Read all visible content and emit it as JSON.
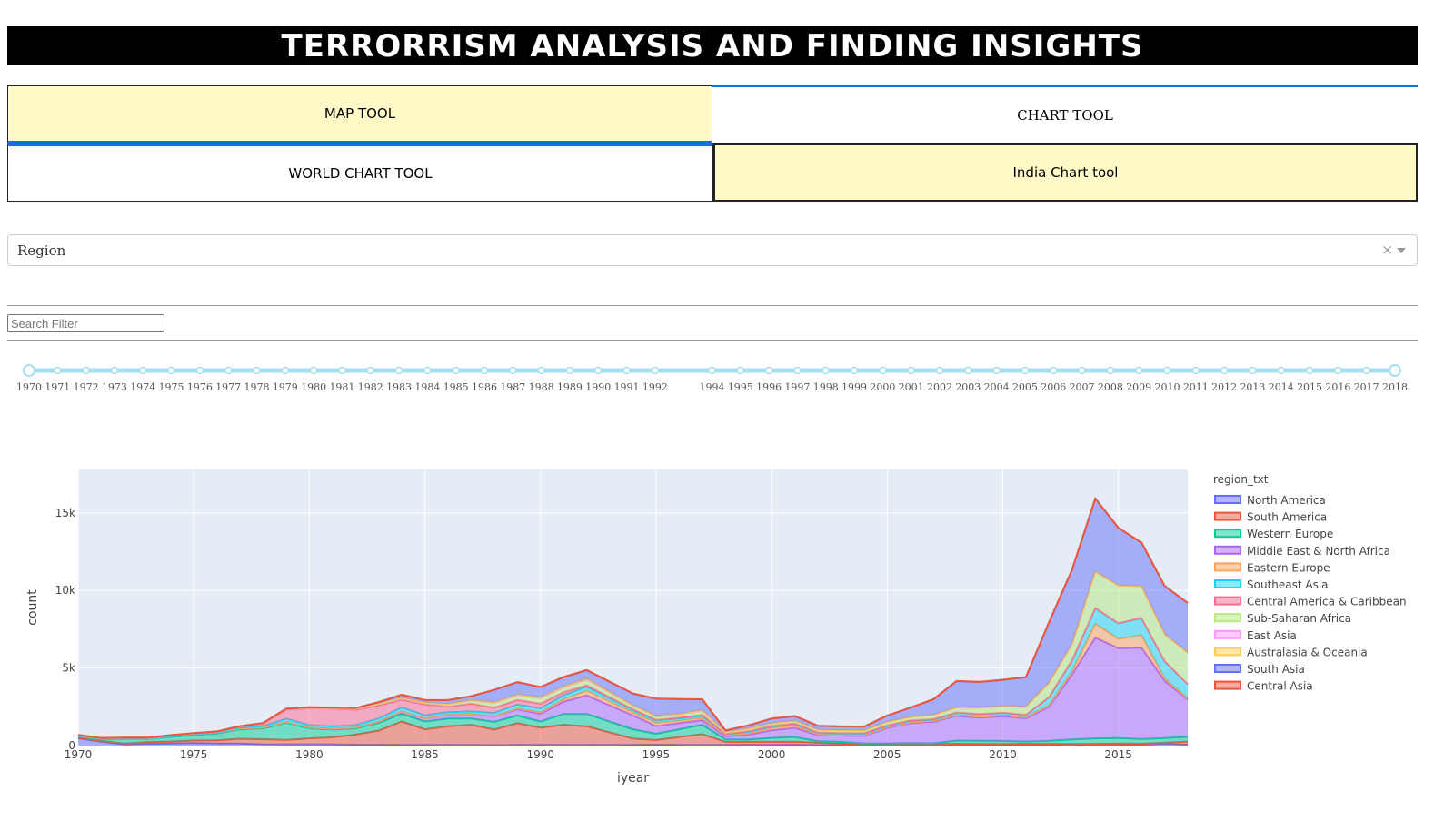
{
  "header": {
    "title": "TERRORRISM ANALYSIS AND FINDING INSIGHTS"
  },
  "tabs": {
    "map_tool": "MAP TOOL",
    "chart_tool": "CHART TOOL",
    "world_chart_tool": "WORLD CHART TOOL",
    "india_chart_tool": "India Chart tool"
  },
  "dropdown": {
    "selected": "Region",
    "clear_icon": "clear-x-icon",
    "arrow_icon": "chevron-down-icon"
  },
  "search": {
    "placeholder": "Search Filter"
  },
  "slider": {
    "min": 1970,
    "max": 2018,
    "marks": [
      1970,
      1971,
      1972,
      1973,
      1974,
      1975,
      1976,
      1977,
      1978,
      1979,
      1980,
      1981,
      1982,
      1983,
      1984,
      1985,
      1986,
      1987,
      1988,
      1989,
      1990,
      1991,
      1992,
      1994,
      1995,
      1996,
      1997,
      1998,
      1999,
      2000,
      2001,
      2002,
      2003,
      2004,
      2005,
      2006,
      2007,
      2008,
      2009,
      2010,
      2011,
      2012,
      2013,
      2014,
      2015,
      2016,
      2017,
      2018
    ],
    "selected_range": [
      1970,
      2018
    ]
  },
  "chart_data": {
    "type": "area",
    "xlabel": "iyear",
    "ylabel": "count",
    "legend_title": "region_txt",
    "legend_position": "right",
    "grid": true,
    "xlim": [
      1970,
      2018
    ],
    "ylim": [
      0,
      17800
    ],
    "x_ticks": [
      1970,
      1975,
      1980,
      1985,
      1990,
      1995,
      2000,
      2005,
      2010,
      2015
    ],
    "y_ticks": [
      0,
      5000,
      10000,
      15000
    ],
    "y_tick_labels": [
      "0",
      "5k",
      "10k",
      "15k"
    ],
    "x": [
      1970,
      1971,
      1972,
      1973,
      1974,
      1975,
      1976,
      1977,
      1978,
      1979,
      1980,
      1981,
      1982,
      1983,
      1984,
      1985,
      1986,
      1987,
      1988,
      1989,
      1990,
      1991,
      1992,
      1994,
      1995,
      1996,
      1997,
      1998,
      1999,
      2000,
      2001,
      2002,
      2003,
      2004,
      2005,
      2006,
      2007,
      2008,
      2009,
      2010,
      2011,
      2012,
      2013,
      2014,
      2015,
      2016,
      2017,
      2018
    ],
    "series": [
      {
        "name": "North America",
        "color": "#636efa",
        "values": [
          470,
          250,
          70,
          120,
          130,
          160,
          130,
          130,
          80,
          70,
          80,
          70,
          60,
          60,
          50,
          50,
          40,
          40,
          30,
          40,
          50,
          40,
          40,
          50,
          60,
          50,
          40,
          40,
          50,
          40,
          50,
          30,
          40,
          30,
          30,
          30,
          30,
          40,
          40,
          40,
          50,
          40,
          30,
          50,
          50,
          60,
          110,
          60
        ]
      },
      {
        "name": "South America",
        "color": "#EF553B",
        "values": [
          30,
          50,
          60,
          110,
          130,
          170,
          210,
          310,
          330,
          300,
          380,
          460,
          650,
          900,
          1500,
          1000,
          1200,
          1300,
          1000,
          1400,
          1100,
          1300,
          1200,
          400,
          300,
          500,
          700,
          200,
          200,
          200,
          200,
          150,
          100,
          50,
          60,
          70,
          60,
          80,
          70,
          60,
          60,
          70,
          70,
          60,
          80,
          60,
          70,
          200
        ]
      },
      {
        "name": "Western Europe",
        "color": "#00cc96",
        "values": [
          100,
          100,
          300,
          200,
          300,
          350,
          430,
          600,
          700,
          1100,
          650,
          500,
          400,
          500,
          500,
          500,
          500,
          400,
          500,
          500,
          400,
          700,
          800,
          600,
          400,
          500,
          600,
          150,
          150,
          250,
          300,
          100,
          100,
          50,
          50,
          50,
          50,
          200,
          200,
          200,
          150,
          200,
          300,
          350,
          350,
          300,
          300,
          300
        ]
      },
      {
        "name": "Middle East & North Africa",
        "color": "#ab63fa",
        "values": [
          20,
          20,
          20,
          20,
          50,
          50,
          50,
          50,
          50,
          50,
          50,
          50,
          50,
          80,
          150,
          200,
          250,
          300,
          350,
          400,
          500,
          800,
          1200,
          900,
          500,
          400,
          300,
          200,
          300,
          500,
          600,
          400,
          400,
          500,
          1000,
          1300,
          1400,
          1600,
          1500,
          1600,
          1500,
          2200,
          4200,
          6500,
          5800,
          5900,
          3700,
          2400
        ]
      },
      {
        "name": "Eastern Europe",
        "color": "#FFA15A",
        "values": [
          5,
          5,
          5,
          5,
          5,
          5,
          5,
          5,
          5,
          5,
          5,
          5,
          5,
          5,
          5,
          5,
          10,
          10,
          20,
          50,
          100,
          150,
          300,
          200,
          200,
          150,
          150,
          80,
          100,
          150,
          150,
          50,
          50,
          50,
          50,
          50,
          50,
          50,
          50,
          50,
          60,
          100,
          200,
          900,
          600,
          800,
          150,
          80
        ]
      },
      {
        "name": "Southeast Asia",
        "color": "#19d3f3",
        "values": [
          5,
          5,
          5,
          5,
          5,
          5,
          5,
          50,
          100,
          200,
          150,
          150,
          150,
          200,
          250,
          200,
          150,
          150,
          200,
          250,
          250,
          250,
          250,
          150,
          150,
          150,
          150,
          50,
          100,
          100,
          100,
          100,
          100,
          100,
          100,
          100,
          100,
          150,
          150,
          150,
          150,
          500,
          700,
          1000,
          1000,
          1100,
          1100,
          900
        ]
      },
      {
        "name": "Central America & Caribbean",
        "color": "#FF6692",
        "values": [
          30,
          30,
          30,
          30,
          30,
          30,
          50,
          80,
          150,
          600,
          1100,
          1150,
          1000,
          850,
          500,
          700,
          350,
          500,
          350,
          300,
          300,
          200,
          100,
          50,
          50,
          50,
          40,
          30,
          30,
          30,
          30,
          20,
          20,
          20,
          20,
          20,
          20,
          20,
          20,
          20,
          20,
          20,
          20,
          20,
          20,
          20,
          20,
          20
        ]
      },
      {
        "name": "Sub-Saharan Africa",
        "color": "#B6E880",
        "values": [
          5,
          5,
          5,
          5,
          5,
          10,
          10,
          10,
          20,
          30,
          30,
          30,
          50,
          100,
          100,
          100,
          150,
          200,
          300,
          300,
          350,
          300,
          350,
          200,
          200,
          200,
          250,
          100,
          150,
          150,
          150,
          150,
          150,
          150,
          200,
          200,
          250,
          300,
          400,
          400,
          500,
          900,
          1000,
          2300,
          2400,
          2000,
          1700,
          2000
        ]
      },
      {
        "name": "East Asia",
        "color": "#FF97FF",
        "values": [
          5,
          5,
          5,
          5,
          5,
          5,
          5,
          5,
          5,
          5,
          5,
          5,
          5,
          5,
          5,
          5,
          10,
          10,
          10,
          20,
          30,
          30,
          20,
          30,
          40,
          20,
          20,
          10,
          10,
          10,
          10,
          10,
          10,
          10,
          10,
          10,
          10,
          10,
          10,
          10,
          10,
          10,
          20,
          30,
          20,
          20,
          20,
          10
        ]
      },
      {
        "name": "Australasia & Oceania",
        "color": "#FECB52",
        "values": [
          5,
          5,
          5,
          5,
          5,
          5,
          5,
          5,
          5,
          5,
          5,
          5,
          10,
          10,
          20,
          20,
          20,
          20,
          30,
          30,
          40,
          40,
          50,
          20,
          20,
          20,
          30,
          10,
          10,
          10,
          10,
          10,
          10,
          10,
          10,
          10,
          10,
          10,
          10,
          10,
          10,
          10,
          10,
          10,
          10,
          20,
          20,
          20
        ]
      },
      {
        "name": "South Asia",
        "color": "#636efa",
        "values": [
          5,
          5,
          5,
          5,
          5,
          5,
          5,
          5,
          5,
          5,
          15,
          20,
          35,
          90,
          200,
          150,
          250,
          250,
          800,
          800,
          650,
          600,
          550,
          750,
          1100,
          950,
          700,
          100,
          200,
          300,
          300,
          250,
          250,
          250,
          400,
          600,
          1000,
          1700,
          1650,
          1700,
          1900,
          3900,
          4800,
          4700,
          3700,
          2800,
          3100,
          3200
        ]
      },
      {
        "name": "Central Asia",
        "color": "#EF553B",
        "values": [
          5,
          5,
          5,
          5,
          5,
          5,
          5,
          5,
          5,
          5,
          5,
          5,
          5,
          5,
          5,
          5,
          5,
          5,
          5,
          5,
          5,
          10,
          10,
          10,
          10,
          10,
          10,
          5,
          5,
          5,
          5,
          5,
          5,
          5,
          5,
          5,
          5,
          5,
          5,
          5,
          5,
          5,
          5,
          5,
          5,
          5,
          5,
          5
        ]
      }
    ]
  }
}
